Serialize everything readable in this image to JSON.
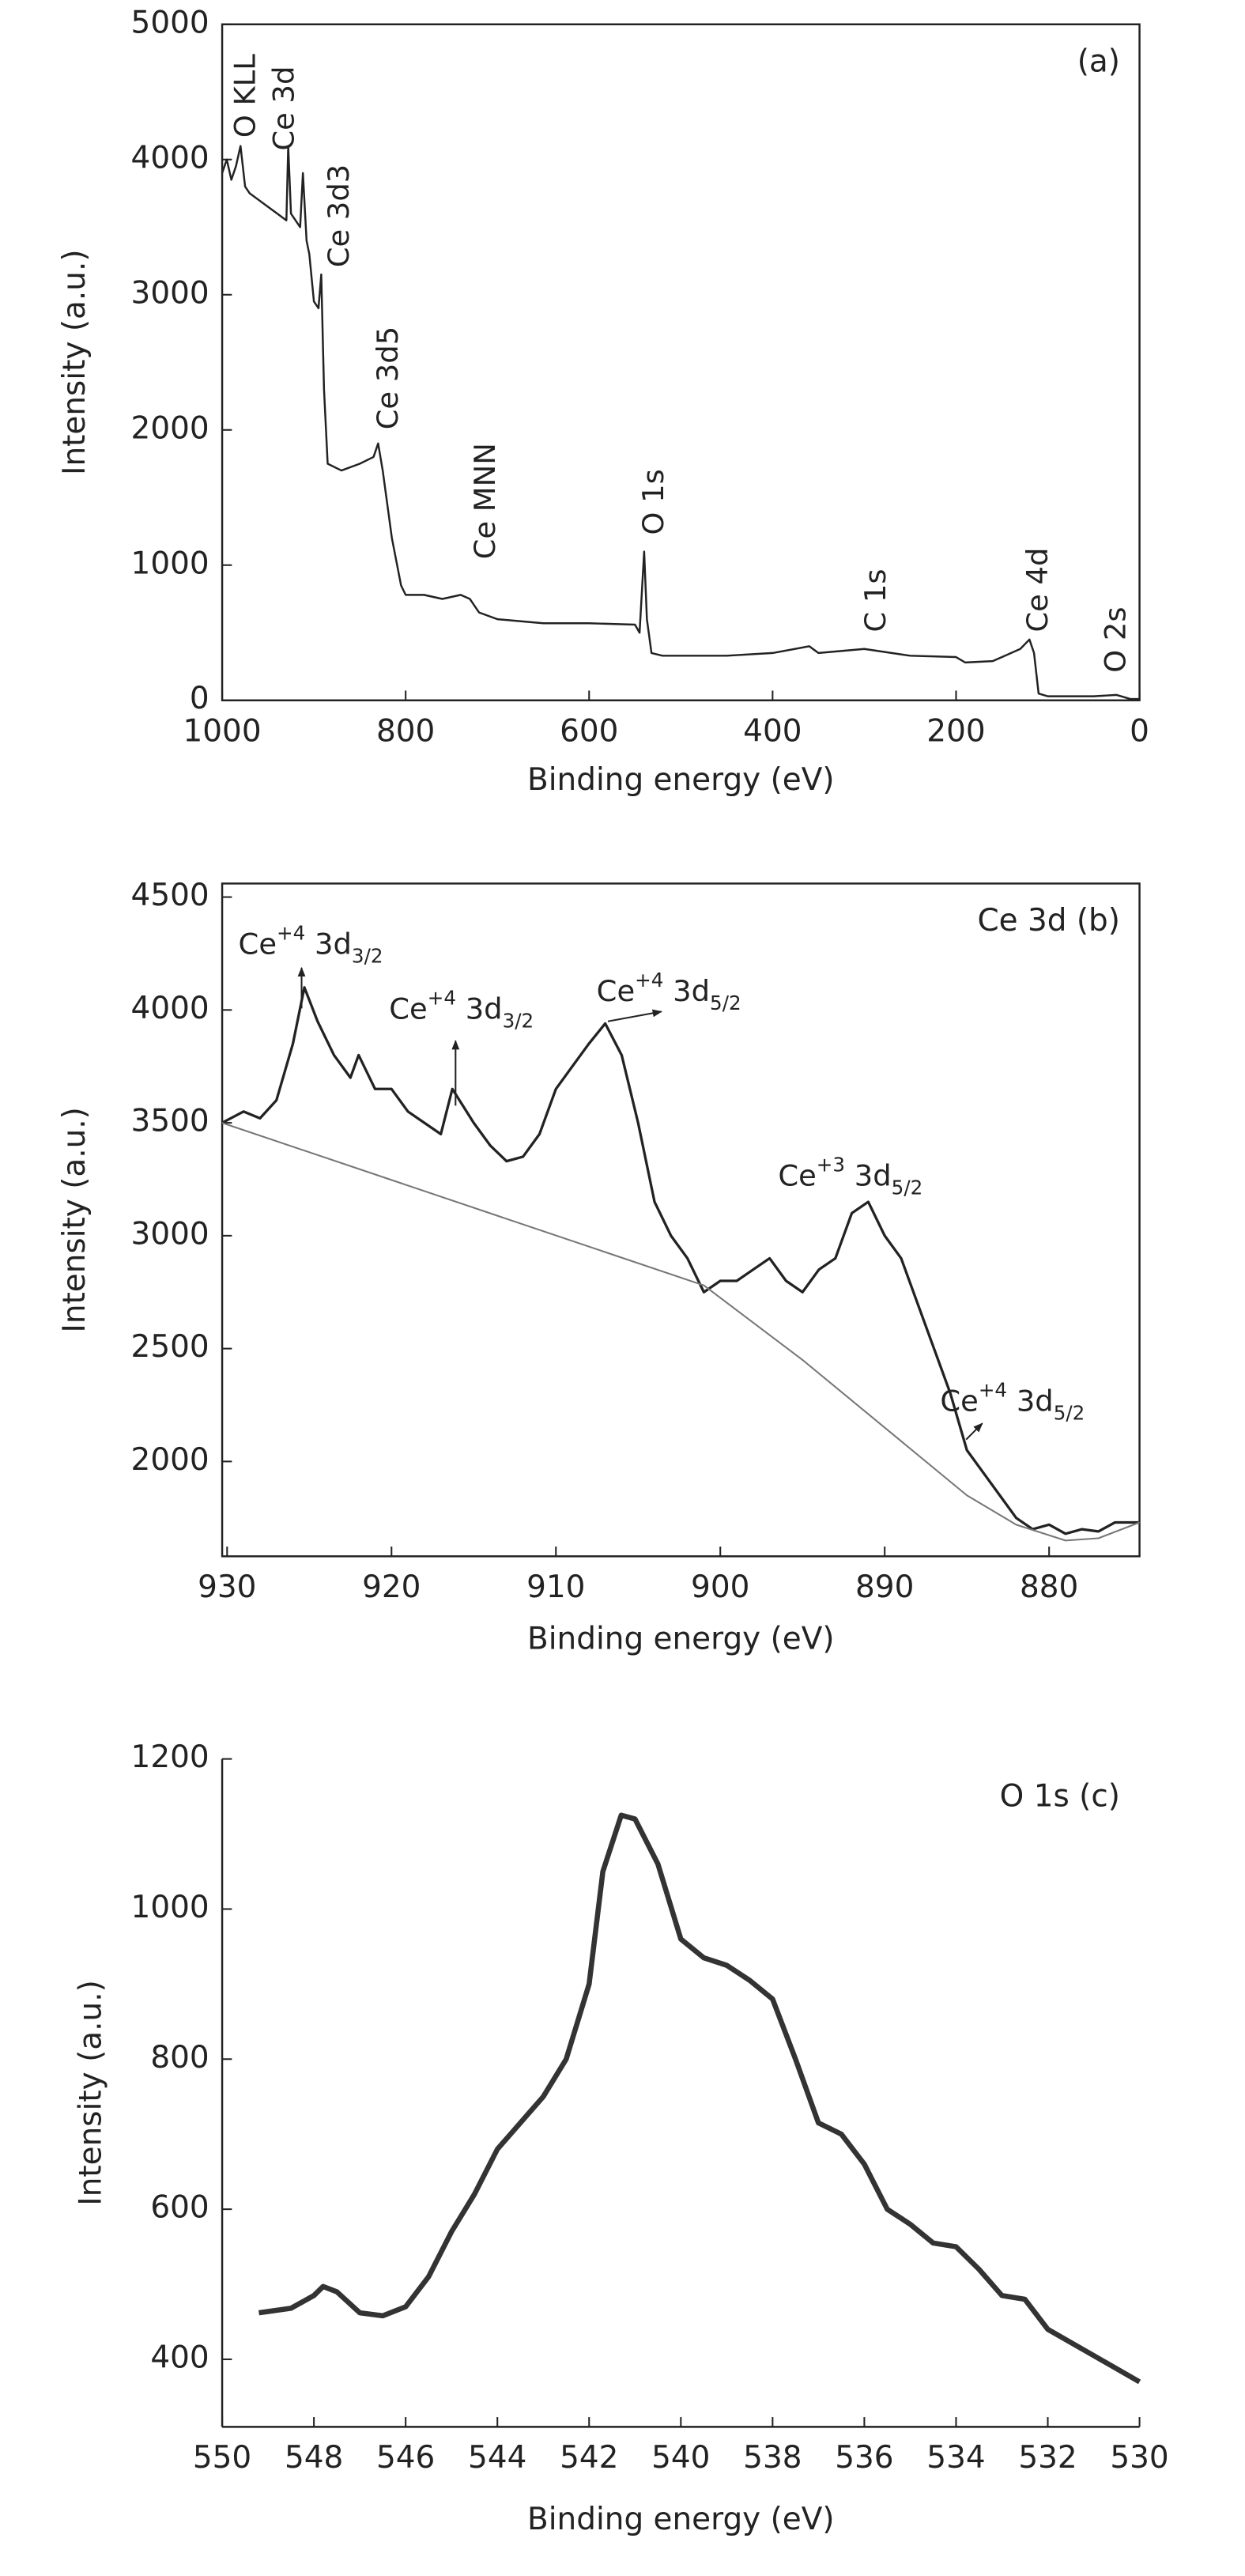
{
  "chart_data": [
    {
      "type": "line",
      "xlabel": "Binding energy (eV)",
      "ylabel": "Intensity (a.u.)",
      "panel": "(a)",
      "xlim": [
        1000,
        0
      ],
      "xticks": [
        1000,
        800,
        600,
        400,
        200,
        0
      ],
      "ylim": [
        0,
        5000
      ],
      "yticks": [
        0,
        1000,
        2000,
        3000,
        4000,
        5000
      ],
      "annotations": [
        "O KLL",
        "Ce 3d",
        "Ce 3d3",
        "Ce 3d5",
        "Ce MNN",
        "O 1s",
        "C 1s",
        "Ce 4d",
        "O 2s"
      ],
      "series": [
        {
          "color": "#222222",
          "x": [
            1000,
            995,
            990,
            985,
            980,
            975,
            970,
            960,
            950,
            940,
            930,
            928,
            925,
            915,
            912,
            908,
            905,
            900,
            895,
            892,
            889,
            885,
            870,
            850,
            835,
            830,
            825,
            815,
            805,
            800,
            780,
            760,
            740,
            730,
            720,
            700,
            650,
            600,
            550,
            545,
            540,
            537,
            532,
            520,
            450,
            400,
            360,
            350,
            300,
            250,
            200,
            190,
            160,
            130,
            120,
            115,
            110,
            100,
            50,
            25,
            10,
            0
          ],
          "values": [
            3900,
            4000,
            3850,
            3950,
            4100,
            3800,
            3750,
            3700,
            3650,
            3600,
            3550,
            4100,
            3600,
            3500,
            3900,
            3400,
            3300,
            2950,
            2900,
            3150,
            2300,
            1750,
            1700,
            1750,
            1800,
            1900,
            1700,
            1200,
            850,
            780,
            780,
            750,
            780,
            750,
            650,
            600,
            570,
            570,
            560,
            500,
            1100,
            600,
            350,
            330,
            330,
            350,
            400,
            350,
            380,
            330,
            320,
            280,
            290,
            380,
            450,
            350,
            50,
            30,
            30,
            40,
            10,
            10
          ]
        }
      ]
    },
    {
      "type": "line",
      "xlabel": "Binding energy (eV)",
      "ylabel": "Intensity (a.u.)",
      "panel": "Ce 3d  (b)",
      "xlim": [
        930.3,
        874.5
      ],
      "xticks": [
        930,
        920,
        910,
        900,
        890,
        880
      ],
      "ylim": [
        1580,
        4560
      ],
      "yticks": [
        2000,
        2500,
        3000,
        3500,
        4000,
        4500
      ],
      "annotations": [
        {
          "element": "Ce",
          "charge": "+4",
          "orbital": " 3d",
          "level": "3/2"
        },
        {
          "element": "Ce",
          "charge": "+4",
          "orbital": " 3d",
          "level": "3/2"
        },
        {
          "element": "Ce",
          "charge": "+4",
          "orbital": " 3d",
          "level": "5/2"
        },
        {
          "element": "Ce",
          "charge": "+3",
          "orbital": " 3d",
          "level": "5/2"
        },
        {
          "element": "Ce",
          "charge": "+4",
          "orbital": " 3d",
          "level": "5/2"
        }
      ],
      "series": [
        {
          "color": "#222222",
          "x": [
            930.3,
            929,
            928,
            927,
            926,
            925.3,
            924.5,
            923.5,
            922.5,
            922,
            921,
            920,
            919,
            918,
            917,
            916.3,
            915,
            914,
            913,
            912,
            911,
            910,
            909,
            908,
            907,
            906,
            905,
            904,
            903,
            902,
            901,
            900,
            899,
            898,
            897,
            896,
            895,
            894,
            893,
            892,
            891,
            890,
            889,
            888,
            887,
            886,
            885,
            884,
            883,
            882,
            881,
            880,
            879,
            878,
            877,
            876,
            874.5
          ],
          "values": [
            3500,
            3550,
            3520,
            3600,
            3850,
            4100,
            3950,
            3800,
            3700,
            3800,
            3650,
            3650,
            3550,
            3500,
            3450,
            3650,
            3500,
            3400,
            3330,
            3350,
            3450,
            3650,
            3750,
            3850,
            3940,
            3800,
            3500,
            3150,
            3000,
            2900,
            2750,
            2800,
            2800,
            2850,
            2900,
            2800,
            2750,
            2850,
            2900,
            3100,
            3150,
            3000,
            2900,
            2700,
            2500,
            2300,
            2050,
            1950,
            1850,
            1750,
            1700,
            1720,
            1680,
            1700,
            1690,
            1730,
            1730
          ]
        },
        {
          "color": "#777777",
          "x": [
            930.3,
            901,
            895,
            890,
            885,
            882,
            879,
            877,
            874.5
          ],
          "values": [
            3500,
            2780,
            2450,
            2150,
            1850,
            1720,
            1650,
            1660,
            1730
          ]
        }
      ]
    },
    {
      "type": "line",
      "xlabel": "Binding energy (eV)",
      "ylabel": "Intensity (a.u.)",
      "panel": "O 1s  (c)",
      "xlim": [
        550,
        530
      ],
      "xticks": [
        550,
        548,
        546,
        544,
        542,
        540,
        538,
        536,
        534,
        532,
        530
      ],
      "ylim": [
        310,
        1200
      ],
      "yticks": [
        400,
        600,
        800,
        1000,
        1200
      ],
      "series": [
        {
          "color": "#333333",
          "x": [
            549.2,
            548.5,
            548,
            547.8,
            547.5,
            547,
            546.5,
            546,
            545.5,
            545,
            544.5,
            544,
            543,
            542.5,
            542,
            541.7,
            541.3,
            541,
            540.5,
            540,
            539.5,
            539,
            538.5,
            538,
            537.5,
            537,
            536.5,
            536,
            535.5,
            535,
            534.5,
            534,
            533.5,
            533,
            532.5,
            532,
            531,
            530
          ],
          "values": [
            462,
            468,
            485,
            497,
            490,
            462,
            458,
            470,
            510,
            570,
            620,
            680,
            750,
            800,
            900,
            1050,
            1125,
            1120,
            1060,
            960,
            935,
            925,
            905,
            880,
            800,
            715,
            700,
            660,
            600,
            580,
            555,
            550,
            520,
            485,
            480,
            440,
            405,
            370
          ]
        }
      ]
    }
  ]
}
